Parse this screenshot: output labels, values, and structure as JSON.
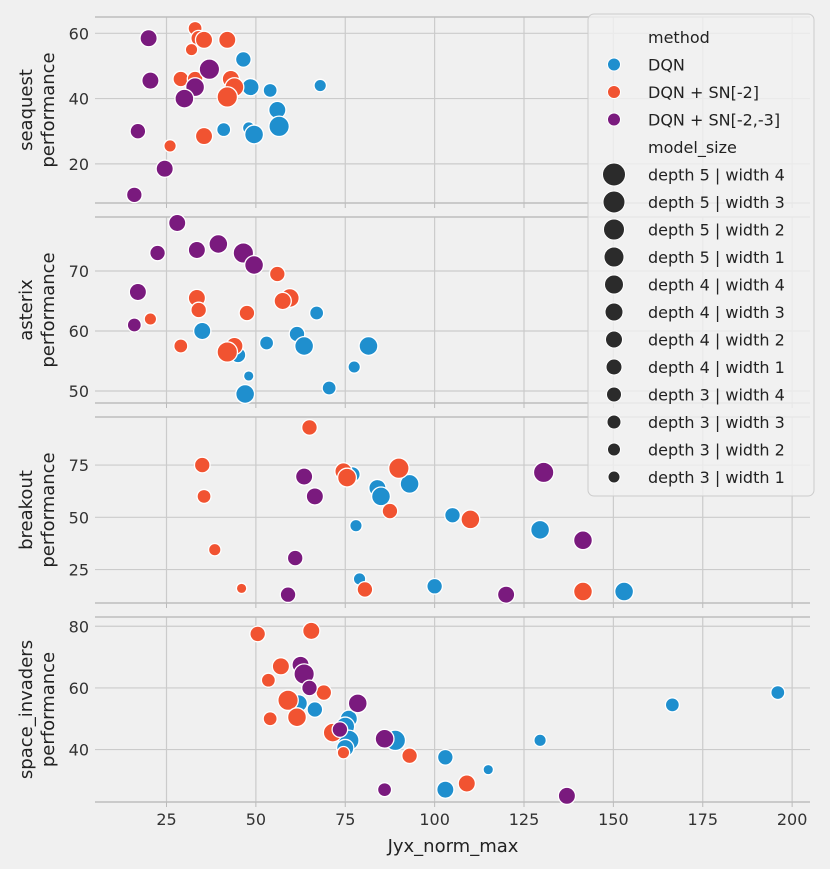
{
  "chart_data": {
    "type": "scatter",
    "xlabel": "Jyx_norm_max",
    "x_ticks": [
      25,
      50,
      75,
      100,
      125,
      150,
      175,
      200
    ],
    "xlim": [
      5,
      205
    ],
    "colors": {
      "DQN": "#1f8fce",
      "DQN + SN[-2]": "#f15331",
      "DQN + SN[-2,-3]": "#7a1a7e",
      "legend_dot": "#2b2b2b"
    },
    "legend": {
      "placement": "top-right",
      "method_title": "method",
      "methods": [
        "DQN",
        "DQN + SN[-2]",
        "DQN + SN[-2,-3]"
      ],
      "size_title": "model_size",
      "sizes": [
        "depth 5 | width 4",
        "depth 5 | width 3",
        "depth 5 | width 2",
        "depth 5 | width 1",
        "depth 4 | width 4",
        "depth 4 | width 3",
        "depth 4 | width 2",
        "depth 4 | width 1",
        "depth 3 | width 4",
        "depth 3 | width 3",
        "depth 3 | width 2",
        "depth 3 | width 1"
      ]
    },
    "panels": [
      {
        "game": "seaquest",
        "ylabel_line1": "seaquest",
        "ylabel_line2": "performance",
        "ylim": [
          8,
          65
        ],
        "y_ticks": [
          20,
          40,
          60
        ],
        "points": [
          [
            "DQN",
            46.5,
            52,
            4
          ],
          [
            "DQN",
            48.5,
            43.5,
            5
          ],
          [
            "DQN",
            54,
            42.5,
            3
          ],
          [
            "DQN",
            68,
            44,
            2
          ],
          [
            "DQN",
            56,
            36.5,
            5
          ],
          [
            "DQN",
            41,
            30.5,
            3
          ],
          [
            "DQN",
            48,
            31,
            2
          ],
          [
            "DQN",
            49.5,
            29,
            6
          ],
          [
            "DQN",
            56.5,
            31.5,
            7
          ],
          [
            "SN2",
            33,
            61.5,
            3
          ],
          [
            "SN2",
            34,
            58.5,
            4
          ],
          [
            "SN2",
            35.5,
            58,
            5
          ],
          [
            "SN2",
            42,
            58,
            5
          ],
          [
            "SN2",
            32,
            55,
            2
          ],
          [
            "SN2",
            29,
            46,
            4
          ],
          [
            "SN2",
            33,
            46,
            4
          ],
          [
            "SN2",
            43,
            46,
            5
          ],
          [
            "SN2",
            44,
            43.5,
            6
          ],
          [
            "SN2",
            42,
            40.5,
            7
          ],
          [
            "SN2",
            35.5,
            28.5,
            5
          ],
          [
            "SN2",
            26,
            25.5,
            2
          ],
          [
            "SN3",
            20,
            58.5,
            5
          ],
          [
            "SN3",
            37,
            49,
            7
          ],
          [
            "SN3",
            20.5,
            45.5,
            5
          ],
          [
            "SN3",
            33,
            43.5,
            6
          ],
          [
            "SN3",
            30,
            40,
            6
          ],
          [
            "SN3",
            17,
            30,
            4
          ],
          [
            "SN3",
            24.5,
            18.5,
            5
          ],
          [
            "SN3",
            16,
            10.5,
            4
          ]
        ]
      },
      {
        "game": "asterix",
        "ylabel_line1": "asterix",
        "ylabel_line2": "performance",
        "ylim": [
          48,
          79
        ],
        "y_ticks": [
          50,
          60,
          70
        ],
        "points": [
          [
            "DQN",
            67,
            63,
            3
          ],
          [
            "DQN",
            61.5,
            59.5,
            4
          ],
          [
            "DQN",
            35,
            60,
            5
          ],
          [
            "DQN",
            53,
            58,
            3
          ],
          [
            "DQN",
            63.5,
            57.5,
            6
          ],
          [
            "DQN",
            81.5,
            57.5,
            6
          ],
          [
            "DQN",
            45,
            56,
            4
          ],
          [
            "DQN",
            77.5,
            54,
            2
          ],
          [
            "DQN",
            48,
            52.5,
            1
          ],
          [
            "DQN",
            70.5,
            50.5,
            3
          ],
          [
            "DQN",
            47,
            49.5,
            6
          ],
          [
            "SN2",
            56,
            69.5,
            4
          ],
          [
            "SN2",
            59.5,
            65.5,
            6
          ],
          [
            "SN2",
            57.5,
            65,
            5
          ],
          [
            "SN2",
            33.5,
            65.5,
            5
          ],
          [
            "SN2",
            34,
            63.5,
            4
          ],
          [
            "SN2",
            47.5,
            63,
            4
          ],
          [
            "SN2",
            20.5,
            62,
            2
          ],
          [
            "SN2",
            29,
            57.5,
            3
          ],
          [
            "SN2",
            44,
            57.5,
            5
          ],
          [
            "SN2",
            42,
            56.5,
            7
          ],
          [
            "SN3",
            28,
            78,
            5
          ],
          [
            "SN3",
            39.5,
            74.5,
            6
          ],
          [
            "SN3",
            46.5,
            73,
            7
          ],
          [
            "SN3",
            33.5,
            73.5,
            5
          ],
          [
            "SN3",
            22.5,
            73,
            4
          ],
          [
            "SN3",
            49.5,
            71,
            6
          ],
          [
            "SN3",
            17,
            66.5,
            5
          ],
          [
            "SN3",
            16,
            61,
            3
          ]
        ]
      },
      {
        "game": "breakout",
        "ylabel_line1": "breakout",
        "ylabel_line2": "performance",
        "ylim": [
          9,
          98
        ],
        "y_ticks": [
          25,
          50,
          75
        ],
        "points": [
          [
            "DQN",
            77,
            70.5,
            4
          ],
          [
            "DQN",
            84,
            64,
            5
          ],
          [
            "DQN",
            85,
            60,
            6
          ],
          [
            "DQN",
            93,
            66,
            6
          ],
          [
            "DQN",
            105,
            51,
            4
          ],
          [
            "DQN",
            78,
            46,
            2
          ],
          [
            "DQN",
            129.5,
            44,
            6
          ],
          [
            "DQN",
            79,
            20.5,
            2
          ],
          [
            "DQN",
            100,
            17,
            4
          ],
          [
            "DQN",
            153,
            14.5,
            6
          ],
          [
            "SN2",
            65,
            93,
            4
          ],
          [
            "SN2",
            35,
            75,
            4
          ],
          [
            "SN2",
            74.5,
            72,
            5
          ],
          [
            "SN2",
            90,
            73.5,
            7
          ],
          [
            "SN2",
            75.5,
            69,
            6
          ],
          [
            "SN2",
            35.5,
            60,
            3
          ],
          [
            "SN2",
            87.5,
            53,
            4
          ],
          [
            "SN2",
            110,
            49,
            6
          ],
          [
            "SN2",
            38.5,
            34.5,
            2
          ],
          [
            "SN2",
            46,
            16,
            1
          ],
          [
            "SN2",
            80.5,
            15.5,
            4
          ],
          [
            "SN2",
            141.5,
            14.5,
            6
          ],
          [
            "SN3",
            63.5,
            69.5,
            5
          ],
          [
            "SN3",
            66.5,
            60,
            5
          ],
          [
            "SN3",
            130.5,
            71.5,
            7
          ],
          [
            "SN3",
            141.5,
            39,
            6
          ],
          [
            "SN3",
            61,
            30.5,
            4
          ],
          [
            "SN3",
            59,
            13,
            4
          ],
          [
            "SN3",
            120,
            13,
            5
          ]
        ]
      },
      {
        "game": "space_invaders",
        "ylabel_line1": "space_invaders",
        "ylabel_line2": "performance",
        "ylim": [
          23,
          83
        ],
        "y_ticks": [
          40,
          60,
          80
        ],
        "points": [
          [
            "DQN",
            62,
            55,
            5
          ],
          [
            "DQN",
            66.5,
            53,
            4
          ],
          [
            "DQN",
            76,
            50,
            5
          ],
          [
            "DQN",
            75,
            47.5,
            6
          ],
          [
            "DQN",
            76,
            43,
            7
          ],
          [
            "DQN",
            75,
            40.5,
            5
          ],
          [
            "DQN",
            89,
            43,
            7
          ],
          [
            "DQN",
            103,
            37.5,
            4
          ],
          [
            "DQN",
            115,
            33.5,
            1
          ],
          [
            "DQN",
            103,
            27,
            5
          ],
          [
            "DQN",
            129.5,
            43,
            2
          ],
          [
            "DQN",
            166.5,
            54.5,
            3
          ],
          [
            "DQN",
            196,
            58.5,
            3
          ],
          [
            "SN2",
            50.5,
            77.5,
            4
          ],
          [
            "SN2",
            65.5,
            78.5,
            5
          ],
          [
            "SN2",
            57,
            67,
            5
          ],
          [
            "SN2",
            53.5,
            62.5,
            3
          ],
          [
            "SN2",
            69,
            58.5,
            4
          ],
          [
            "SN2",
            59,
            56,
            7
          ],
          [
            "SN2",
            54,
            50,
            3
          ],
          [
            "SN2",
            61.5,
            50.5,
            6
          ],
          [
            "SN2",
            71.5,
            45.5,
            6
          ],
          [
            "SN2",
            74.5,
            39,
            2
          ],
          [
            "SN2",
            93,
            38,
            4
          ],
          [
            "SN2",
            109,
            29,
            5
          ],
          [
            "SN3",
            62.5,
            67.5,
            5
          ],
          [
            "SN3",
            63.5,
            64.5,
            7
          ],
          [
            "SN3",
            65,
            60,
            4
          ],
          [
            "SN3",
            78.5,
            55,
            6
          ],
          [
            "SN3",
            86,
            43.5,
            6
          ],
          [
            "SN3",
            73.5,
            46.5,
            4
          ],
          [
            "SN3",
            86,
            27,
            3
          ],
          [
            "SN3",
            137,
            25,
            5
          ]
        ]
      }
    ]
  }
}
